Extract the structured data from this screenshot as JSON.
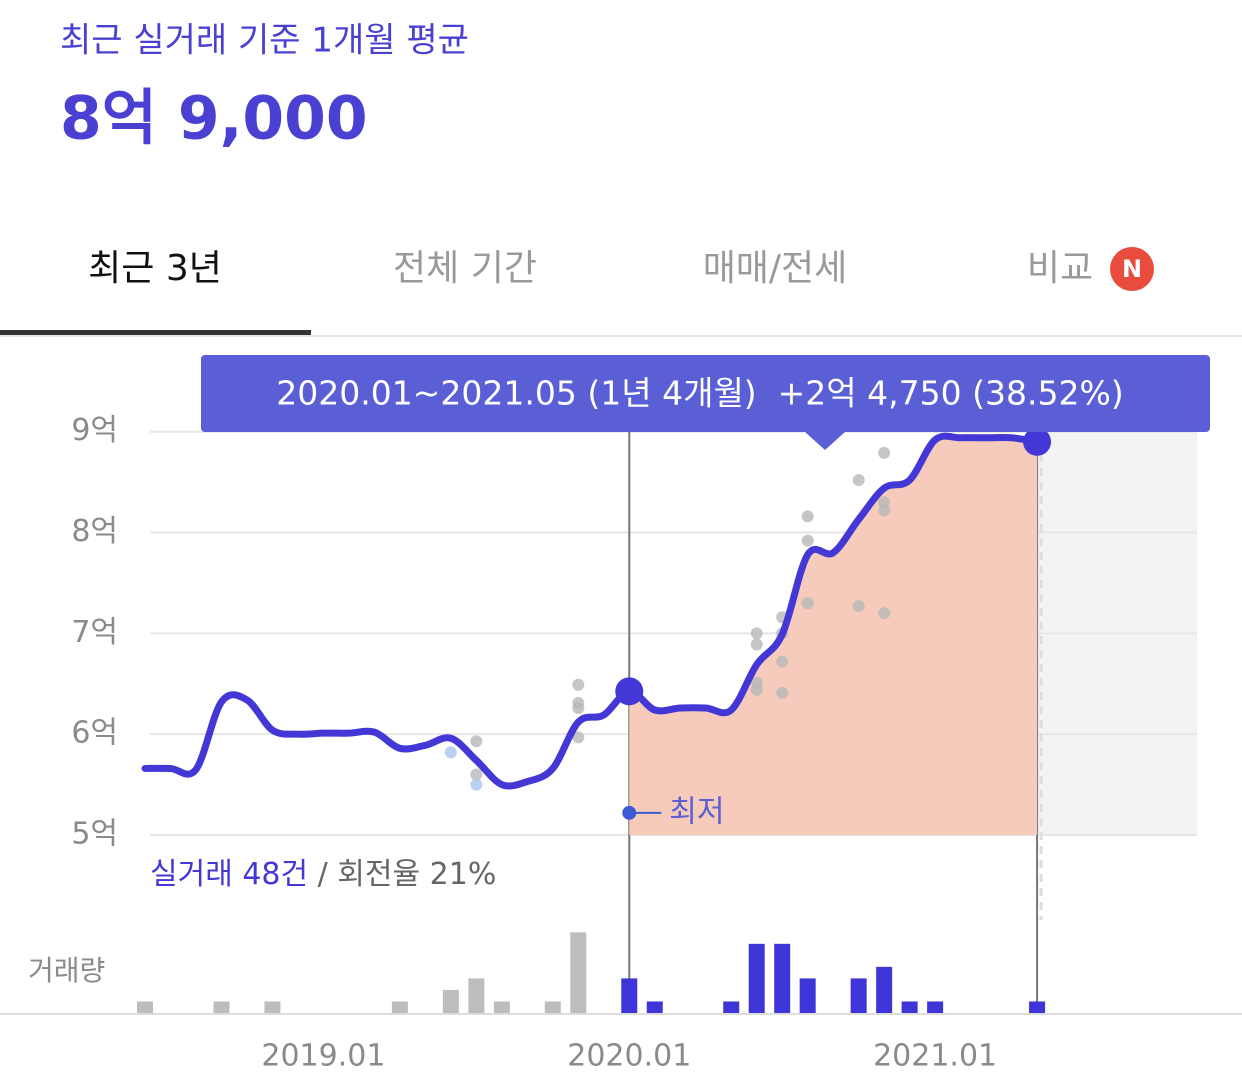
{
  "header": {
    "subtitle": "최근 실거래 기준 1개월 평균",
    "price": "8억 9,000"
  },
  "tabs": {
    "items": [
      "최근 3년",
      "전체 기간",
      "매매/전세",
      "비교"
    ],
    "active": 0,
    "badge": "N"
  },
  "chart_data": {
    "type": "line",
    "tooltip": "2020.01~2021.05 (1년 4개월)  +2억 4,750 (38.52%)",
    "xlim": [
      "2018.06",
      "2021.11"
    ],
    "xticks": [
      "2019.01",
      "2020.01",
      "2021.01"
    ],
    "ylim": [
      5,
      9.9
    ],
    "yticks": [
      {
        "value": 5,
        "label": "5억"
      },
      {
        "value": 6,
        "label": "6억"
      },
      {
        "value": 7,
        "label": "7억"
      },
      {
        "value": 8,
        "label": "8억"
      },
      {
        "value": 9,
        "label": "9억"
      }
    ],
    "grid": true,
    "selection": {
      "start": "2020.01",
      "end": "2021.05",
      "fill": "#f6cbbb"
    },
    "series": [
      {
        "color": "#4338d6",
        "x": [
          "2018.06",
          "2018.07",
          "2018.08",
          "2018.09",
          "2018.10",
          "2018.11",
          "2018.12",
          "2019.01",
          "2019.02",
          "2019.03",
          "2019.04",
          "2019.05",
          "2019.06",
          "2019.07",
          "2019.08",
          "2019.09",
          "2019.10",
          "2019.11",
          "2019.12",
          "2020.01",
          "2020.02",
          "2020.03",
          "2020.04",
          "2020.05",
          "2020.06",
          "2020.07",
          "2020.08",
          "2020.09",
          "2020.10",
          "2020.11",
          "2020.12",
          "2021.01",
          "2021.02",
          "2021.03",
          "2021.04",
          "2021.05"
        ],
        "values": [
          5.66,
          5.66,
          5.65,
          6.32,
          6.34,
          6.04,
          6.0,
          6.01,
          6.01,
          6.02,
          5.86,
          5.89,
          5.96,
          5.74,
          5.5,
          5.53,
          5.66,
          6.12,
          6.19,
          6.425,
          6.24,
          6.26,
          6.26,
          6.24,
          6.69,
          6.99,
          7.78,
          7.8,
          8.13,
          8.44,
          8.52,
          8.92,
          8.94,
          8.94,
          8.94,
          8.9
        ]
      }
    ],
    "scatter": [
      {
        "color": "#b8b8b8",
        "x": [
          "2019.07",
          "2019.07",
          "2019.11",
          "2019.11",
          "2019.11",
          "2019.11",
          "2020.06",
          "2020.06",
          "2020.06",
          "2020.06",
          "2020.07",
          "2020.07",
          "2020.07",
          "2020.07",
          "2020.08",
          "2020.08",
          "2020.08",
          "2020.10",
          "2020.10",
          "2020.11",
          "2020.11",
          "2020.11",
          "2020.11"
        ],
        "values": [
          5.93,
          5.6,
          6.49,
          6.31,
          6.26,
          5.97,
          7.0,
          6.89,
          6.51,
          6.44,
          7.16,
          7.0,
          6.72,
          6.41,
          8.16,
          7.92,
          7.3,
          8.52,
          7.27,
          8.79,
          8.3,
          8.22,
          7.2
        ]
      },
      {
        "color": "#a9c6ee",
        "x": [
          "2019.06",
          "2019.07"
        ],
        "values": [
          5.82,
          5.5
        ]
      }
    ],
    "annotation": {
      "text": "최저",
      "x": "2020.01",
      "value": 5.22,
      "color": "#3b5bd6"
    },
    "stats": {
      "count": "실거래 48건",
      "rate": " / 회전율 21%"
    },
    "volume": {
      "label": "거래량",
      "ylim": [
        0,
        7.2
      ],
      "x": [
        "2018.06",
        "2018.09",
        "2018.11",
        "2019.04",
        "2019.06",
        "2019.07",
        "2019.08",
        "2019.10",
        "2019.11",
        "2020.01",
        "2020.02",
        "2020.05",
        "2020.06",
        "2020.07",
        "2020.08",
        "2020.10",
        "2020.11",
        "2020.12",
        "2021.01",
        "2021.05"
      ],
      "values": [
        1,
        1,
        1,
        1,
        2,
        3,
        1,
        1,
        7,
        3,
        1,
        1,
        6,
        6,
        3,
        3,
        4,
        1,
        1,
        1
      ],
      "color": "#bdbdbd",
      "selected_color": "#3d35d8"
    }
  }
}
